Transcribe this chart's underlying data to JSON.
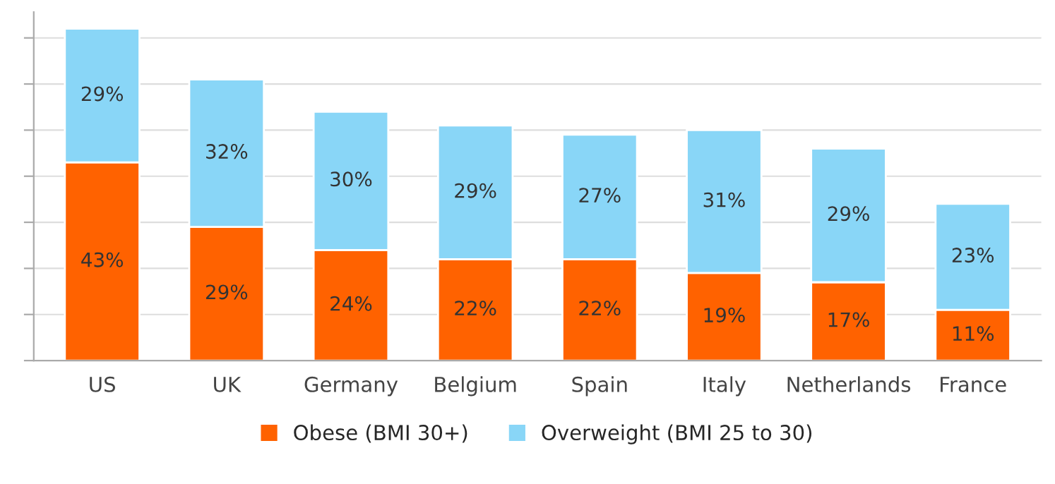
{
  "chart_data": {
    "type": "bar",
    "stacked": true,
    "categories": [
      "US",
      "UK",
      "Germany",
      "Belgium",
      "Spain",
      "Italy",
      "Netherlands",
      "France"
    ],
    "series": [
      {
        "name": "Obese (BMI 30+)",
        "color": "#ff6200",
        "values": [
          43,
          29,
          24,
          22,
          22,
          19,
          17,
          11
        ],
        "value_labels": [
          "43%",
          "29%",
          "24%",
          "22%",
          "22%",
          "19%",
          "17%",
          "11%"
        ]
      },
      {
        "name": "Overweight (BMI 25 to 30)",
        "color": "#89d6f7",
        "values": [
          29,
          32,
          30,
          29,
          27,
          31,
          29,
          23
        ],
        "value_labels": [
          "29%",
          "32%",
          "30%",
          "29%",
          "27%",
          "31%",
          "29%",
          "23%"
        ]
      }
    ],
    "grid": "y",
    "legend": "bottom",
    "tick_labels": "x"
  }
}
